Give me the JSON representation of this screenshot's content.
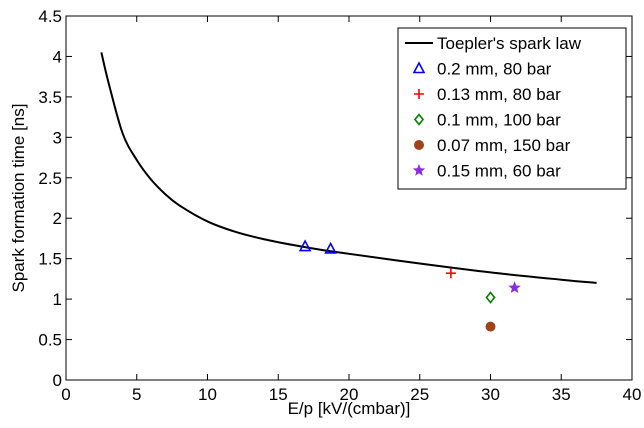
{
  "chart_data": {
    "type": "scatter",
    "xlabel": "E/p [kV/(cmbar)]",
    "ylabel": "Spark formation time [ns]",
    "xlim": [
      0,
      40
    ],
    "ylim": [
      0,
      4.5
    ],
    "xticks": [
      0,
      5,
      10,
      15,
      20,
      25,
      30,
      35,
      40
    ],
    "yticks": [
      0,
      0.5,
      1,
      1.5,
      2,
      2.5,
      3,
      3.5,
      4,
      4.5
    ],
    "xtick_labels": [
      "0",
      "5",
      "10",
      "15",
      "20",
      "25",
      "30",
      "35",
      "40"
    ],
    "ytick_labels": [
      "0",
      "0.5",
      "1",
      "1.5",
      "2",
      "2.5",
      "3",
      "3.5",
      "4",
      "4.5"
    ],
    "grid": false,
    "legend_position": "top-right",
    "law": {
      "name": "Toepler's spark law",
      "color": "#000000",
      "x": [
        2.5,
        3,
        4,
        5,
        6,
        7,
        8,
        10,
        12,
        14,
        16,
        18,
        20,
        25,
        30,
        35,
        37.5
      ],
      "y": [
        4.05,
        3.68,
        3.05,
        2.72,
        2.48,
        2.3,
        2.16,
        1.96,
        1.83,
        1.74,
        1.67,
        1.61,
        1.56,
        1.44,
        1.33,
        1.24,
        1.2
      ]
    },
    "series": [
      {
        "name": "0.2 mm, 80 bar",
        "marker": "triangle-open",
        "color": "#0000ff",
        "points": [
          {
            "x": 16.9,
            "y": 1.65
          },
          {
            "x": 18.7,
            "y": 1.62
          }
        ]
      },
      {
        "name": "0.13 mm, 80 bar",
        "marker": "plus",
        "color": "#ff0000",
        "points": [
          {
            "x": 27.2,
            "y": 1.32
          }
        ]
      },
      {
        "name": "0.1 mm, 100 bar",
        "marker": "diamond-open",
        "color": "#008000",
        "points": [
          {
            "x": 30.0,
            "y": 1.02
          }
        ]
      },
      {
        "name": "0.07 mm, 150 bar",
        "marker": "circle-filled",
        "color": "#a0421a",
        "points": [
          {
            "x": 30.0,
            "y": 0.66
          }
        ]
      },
      {
        "name": "0.15 mm, 60 bar",
        "marker": "star",
        "color": "#8a2be2",
        "points": [
          {
            "x": 31.7,
            "y": 1.14
          }
        ]
      }
    ]
  }
}
